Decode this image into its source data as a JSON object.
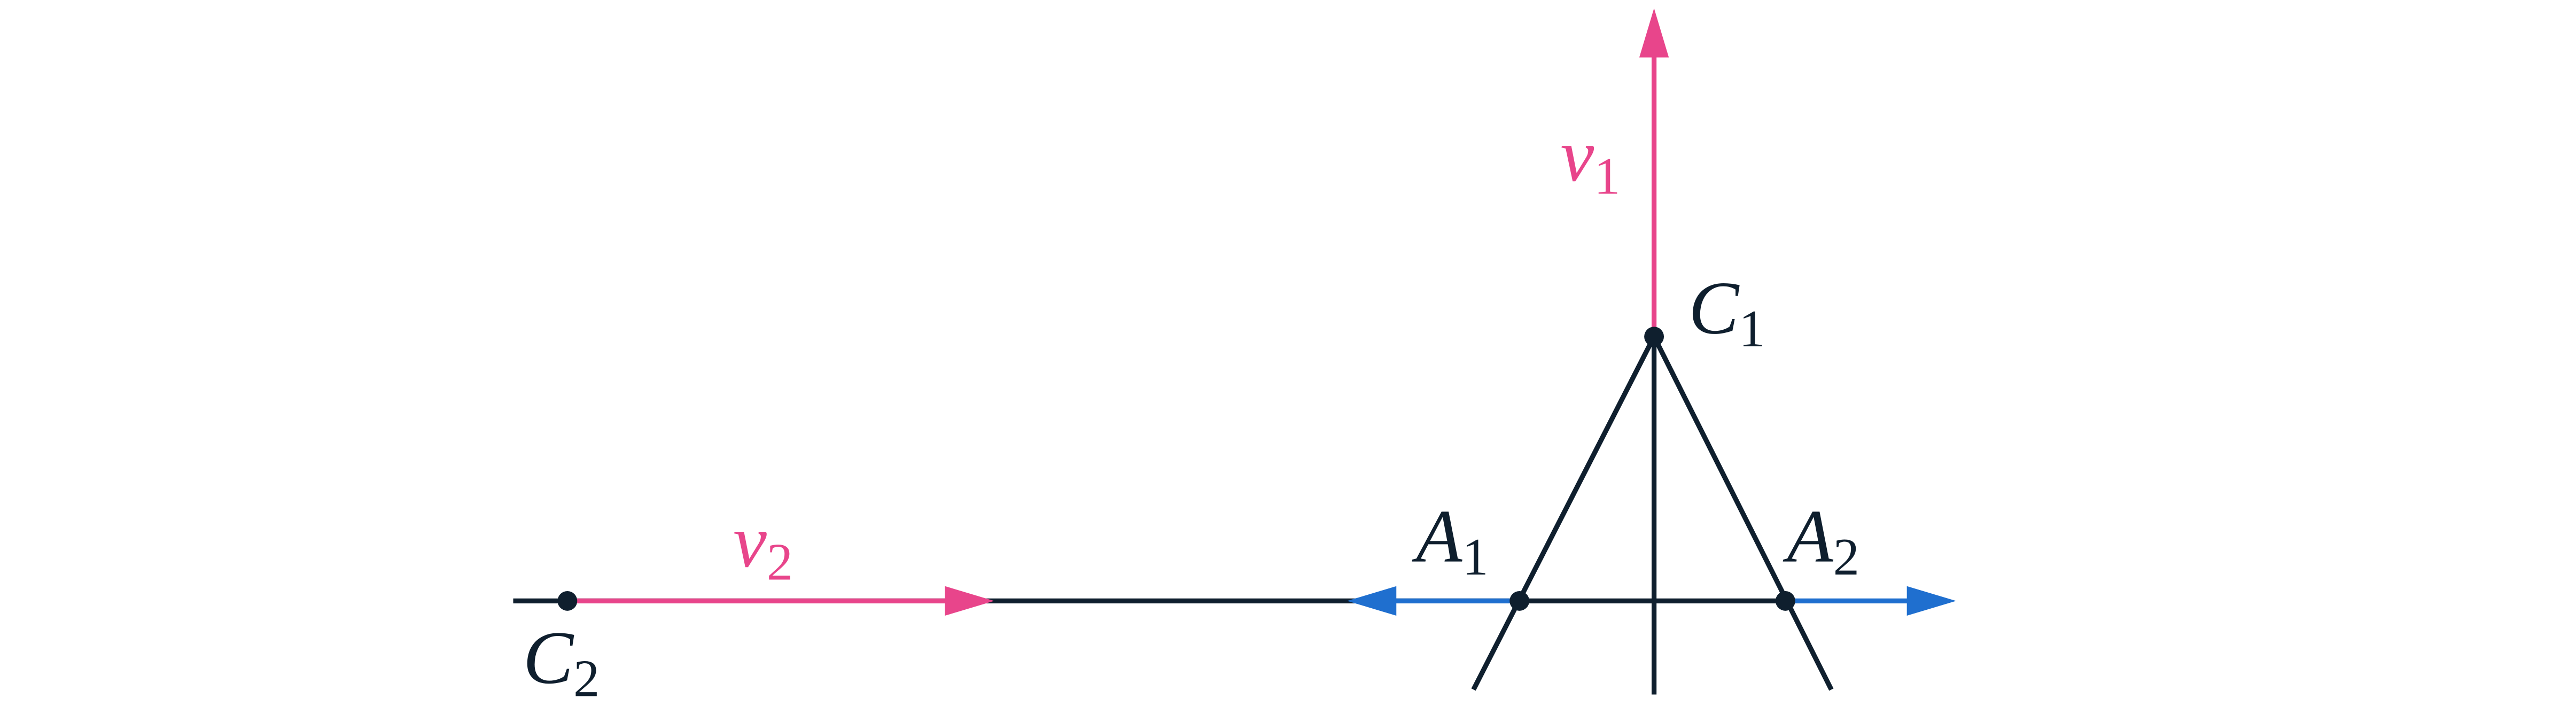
{
  "labels": [
    {
      "base": "v",
      "sub": "1"
    },
    {
      "base": "C",
      "sub": "1"
    },
    {
      "base": "A",
      "sub": "1"
    },
    {
      "base": "A",
      "sub": "2"
    },
    {
      "base": "v",
      "sub": "2"
    },
    {
      "base": "C",
      "sub": "2"
    }
  ]
}
